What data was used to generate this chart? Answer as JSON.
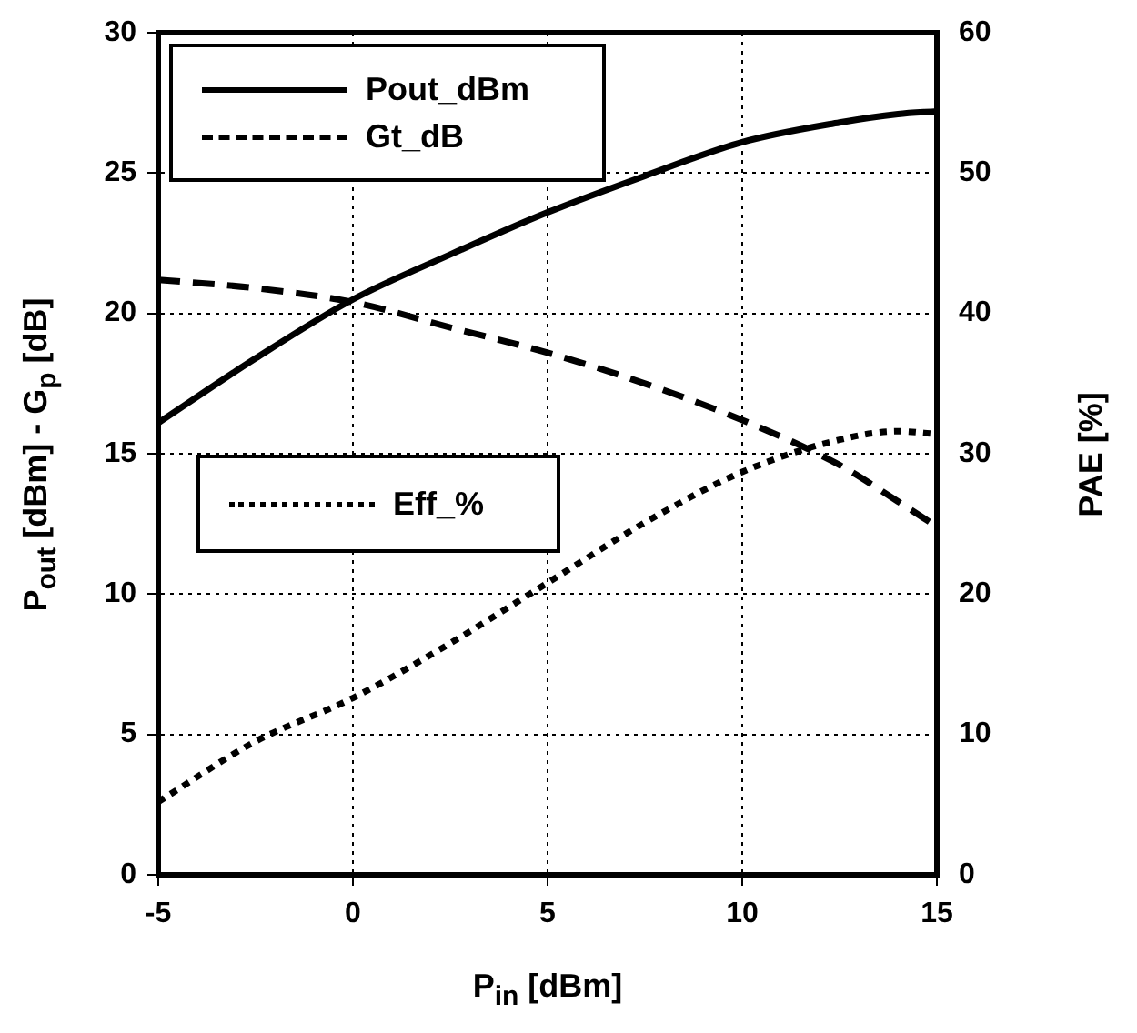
{
  "chart_data": {
    "type": "line",
    "xlabel": "P$_{in}$ [dBm]",
    "ylabel": "P$_{out}$ [dBm] - G$_{p}$ [dB]",
    "y2label": "PAE [%]",
    "x": [
      -5,
      -2.5,
      0,
      2.5,
      5,
      7.5,
      10,
      12.5,
      14,
      15
    ],
    "series": [
      {
        "name": "Pout_dBm",
        "color": "#000000",
        "line_style": "solid",
        "values": [
          16.1,
          18.4,
          20.5,
          22.1,
          23.6,
          24.9,
          26.1,
          26.8,
          27.1,
          27.2
        ]
      },
      {
        "name": "Gt_dB",
        "color": "#000000",
        "line_style": "dashed",
        "values": [
          21.2,
          20.9,
          20.4,
          19.5,
          18.6,
          17.5,
          16.2,
          14.6,
          13.3,
          12.4
        ]
      },
      {
        "name": "Eff_%",
        "color": "#000000",
        "line_style": "dotted",
        "axis": "y2",
        "values": [
          5.2,
          9.5,
          12.6,
          16.5,
          20.8,
          25.1,
          28.7,
          31.0,
          31.6,
          31.4
        ]
      }
    ],
    "xlim": [
      -5,
      15
    ],
    "xticks": [
      -5,
      0,
      5,
      10,
      15
    ],
    "ylim": [
      0,
      30
    ],
    "yticks": [
      0,
      5,
      10,
      15,
      20,
      25,
      30
    ],
    "y2lim": [
      0,
      60
    ],
    "y2ticks": [
      0,
      10,
      20,
      30,
      40,
      50,
      60
    ],
    "grid": true,
    "legend": "top left",
    "marker": "none"
  }
}
